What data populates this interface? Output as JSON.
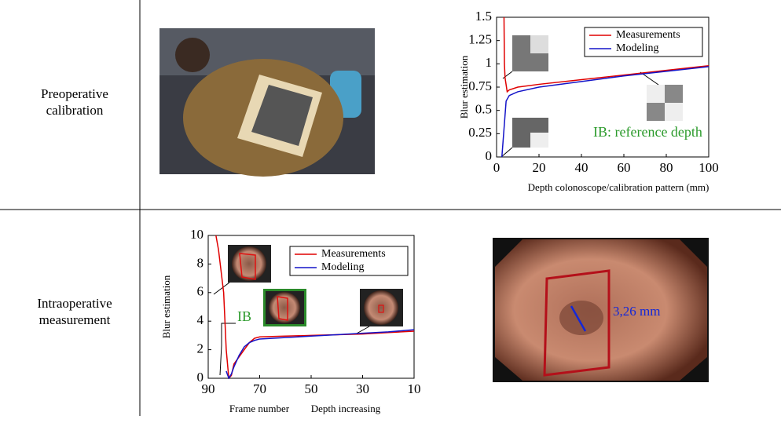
{
  "rows": [
    {
      "label": "Preoperative calibration"
    },
    {
      "label": "Intraoperative measurement"
    }
  ],
  "chart_data": [
    {
      "type": "line",
      "ylabel": "Blur estimation",
      "xlabel": "Depth colonoscope/calibration pattern (mm)",
      "annotation": "IB: reference depth",
      "xlim": [
        0,
        100
      ],
      "xticks": [
        0,
        20,
        40,
        60,
        80,
        100
      ],
      "ylim": [
        0,
        1.5
      ],
      "yticks": [
        0,
        0.25,
        0.5,
        0.75,
        1,
        1.25,
        1.5
      ],
      "legend": "upper right",
      "series": [
        {
          "name": "Measurements",
          "color": "#e00000",
          "x": [
            3.5,
            3.7,
            4,
            5,
            6,
            10,
            20,
            40,
            60,
            80,
            100
          ],
          "values": [
            1.5,
            1.0,
            0.85,
            0.7,
            0.72,
            0.75,
            0.78,
            0.83,
            0.88,
            0.93,
            0.98
          ]
        },
        {
          "name": "Modeling",
          "color": "#1414c8",
          "x": [
            2.5,
            3.5,
            4.5,
            6,
            10,
            20,
            40,
            60,
            80,
            100
          ],
          "values": [
            0,
            0.3,
            0.6,
            0.66,
            0.7,
            0.75,
            0.81,
            0.87,
            0.92,
            0.97
          ]
        }
      ]
    },
    {
      "type": "line",
      "ylabel": "Blur estimation",
      "xlabel": "Frame number",
      "x_annotation": "Depth increasing",
      "annotation": "IB",
      "xlim": [
        90,
        10
      ],
      "xticks": [
        90,
        70,
        50,
        30,
        10
      ],
      "ylim": [
        0,
        10
      ],
      "yticks": [
        0,
        2,
        4,
        6,
        8,
        10
      ],
      "legend": "upper right",
      "series": [
        {
          "name": "Measurements",
          "color": "#e00000",
          "x": [
            87,
            86,
            84,
            83,
            82,
            81,
            80,
            78,
            76,
            74,
            72,
            70,
            60,
            50,
            40,
            30,
            20,
            10
          ],
          "values": [
            10,
            9,
            6,
            2,
            0,
            0.2,
            1,
            1.5,
            2.0,
            2.5,
            2.8,
            2.9,
            2.95,
            3,
            3.05,
            3.1,
            3.2,
            3.3
          ]
        },
        {
          "name": "Modeling",
          "color": "#1414c8",
          "x": [
            83,
            82,
            81,
            80,
            78,
            76,
            74,
            72,
            70,
            60,
            50,
            40,
            30,
            20,
            10
          ],
          "values": [
            0.5,
            0,
            0.3,
            0.8,
            1.6,
            2.2,
            2.5,
            2.65,
            2.75,
            2.85,
            2.95,
            3.05,
            3.15,
            3.25,
            3.4
          ]
        }
      ]
    }
  ],
  "photo_annotation": "3,26 mm"
}
